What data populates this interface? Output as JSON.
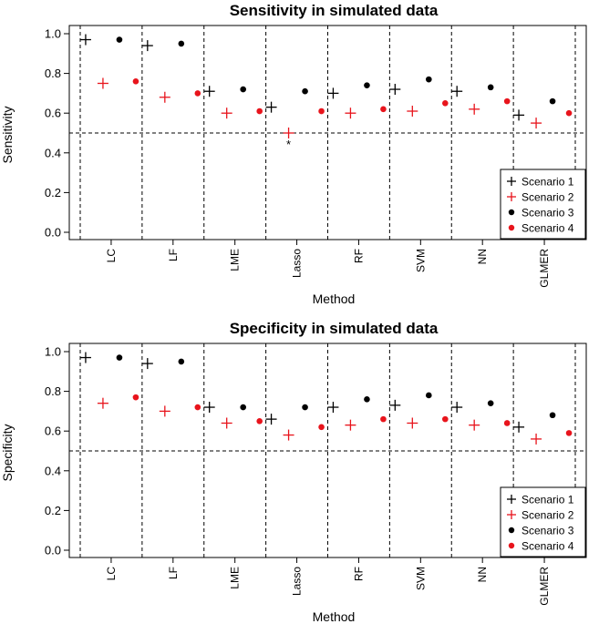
{
  "chart_data": [
    {
      "type": "scatter",
      "title": "Sensitivity in simulated data",
      "xlabel": "Method",
      "ylabel": "Sensitivity",
      "categories": [
        "LC",
        "LF",
        "LME",
        "Lasso",
        "RF",
        "SVM",
        "NN",
        "GLMER"
      ],
      "ylim": [
        0,
        1.0
      ],
      "yticks": [
        "0.0",
        "0.2",
        "0.4",
        "0.6",
        "0.8",
        "1.0"
      ],
      "reference_line": 0.5,
      "series": [
        {
          "name": "Scenario 1",
          "marker": "plus",
          "color": "#000000",
          "values": [
            0.97,
            0.94,
            0.71,
            0.63,
            0.7,
            0.72,
            0.71,
            0.59
          ]
        },
        {
          "name": "Scenario 2",
          "marker": "plus",
          "color": "#e8141c",
          "values": [
            0.75,
            0.68,
            0.6,
            0.5,
            0.6,
            0.61,
            0.62,
            0.55
          ]
        },
        {
          "name": "Scenario 3",
          "marker": "dot",
          "color": "#000000",
          "values": [
            0.97,
            0.95,
            0.72,
            0.71,
            0.74,
            0.77,
            0.73,
            0.66
          ]
        },
        {
          "name": "Scenario 4",
          "marker": "dot",
          "color": "#e8141c",
          "values": [
            0.76,
            0.7,
            0.61,
            0.61,
            0.62,
            0.65,
            0.66,
            0.6
          ]
        }
      ],
      "annotations": [
        {
          "text": "*",
          "category": "Lasso",
          "series": "Scenario 2"
        }
      ],
      "legend": "bottom-right"
    },
    {
      "type": "scatter",
      "title": "Specificity in simulated data",
      "xlabel": "Method",
      "ylabel": "Specificity",
      "categories": [
        "LC",
        "LF",
        "LME",
        "Lasso",
        "RF",
        "SVM",
        "NN",
        "GLMER"
      ],
      "ylim": [
        0,
        1.0
      ],
      "yticks": [
        "0.0",
        "0.2",
        "0.4",
        "0.6",
        "0.8",
        "1.0"
      ],
      "reference_line": 0.5,
      "series": [
        {
          "name": "Scenario 1",
          "marker": "plus",
          "color": "#000000",
          "values": [
            0.97,
            0.94,
            0.72,
            0.66,
            0.72,
            0.73,
            0.72,
            0.62
          ]
        },
        {
          "name": "Scenario 2",
          "marker": "plus",
          "color": "#e8141c",
          "values": [
            0.74,
            0.7,
            0.64,
            0.58,
            0.63,
            0.64,
            0.63,
            0.56
          ]
        },
        {
          "name": "Scenario 3",
          "marker": "dot",
          "color": "#000000",
          "values": [
            0.97,
            0.95,
            0.72,
            0.72,
            0.76,
            0.78,
            0.74,
            0.68
          ]
        },
        {
          "name": "Scenario 4",
          "marker": "dot",
          "color": "#e8141c",
          "values": [
            0.77,
            0.72,
            0.65,
            0.62,
            0.66,
            0.66,
            0.64,
            0.59
          ]
        }
      ],
      "annotations": [],
      "legend": "bottom-right"
    }
  ]
}
